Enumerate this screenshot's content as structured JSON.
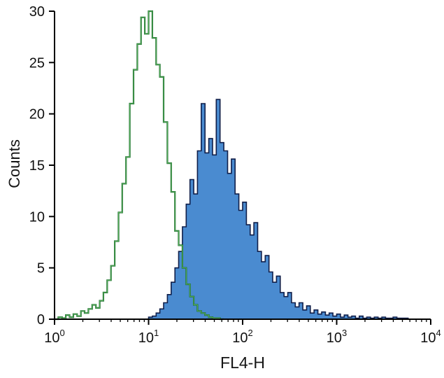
{
  "chart_data": {
    "type": "area",
    "subtype": "flow-cytometry-histogram-overlay",
    "title": "",
    "xlabel": "FL4-H",
    "ylabel": "Counts",
    "x_scale": "log10",
    "xlim_log": [
      0,
      4
    ],
    "ylim": [
      0,
      30
    ],
    "y_ticks": [
      0,
      5,
      10,
      15,
      20,
      25,
      30
    ],
    "x_tick_exponents": [
      0,
      1,
      2,
      3,
      4
    ],
    "x_tick_base": "10",
    "grid": "off",
    "legend": "none",
    "axis_color": "#000000",
    "series": [
      {
        "name": "filled-blue-histogram",
        "style": "filled",
        "color": "#101f4a",
        "fill": "#4a8bd0",
        "peak_count": 21.4,
        "peak_x": 52,
        "logx_start": 0.96,
        "logx_step": 0.04,
        "counts": [
          0,
          0.2,
          0.3,
          0.6,
          1.0,
          1.6,
          2.4,
          3.6,
          5.0,
          6.6,
          9.0,
          11.2,
          13.6,
          12.2,
          16.4,
          21.0,
          16.2,
          17.6,
          16.0,
          21.4,
          17.2,
          16.4,
          14.2,
          15.6,
          12.2,
          10.6,
          11.4,
          9.2,
          8.2,
          9.4,
          6.6,
          5.6,
          6.2,
          4.6,
          3.6,
          4.2,
          2.6,
          2.2,
          2.6,
          1.6,
          1.2,
          1.6,
          0.9,
          1.3,
          0.6,
          0.9,
          0.5,
          0.7,
          0.4,
          0.6,
          0.3,
          0.5,
          0.2,
          0.4,
          0.2,
          0.3,
          0.1,
          0.3,
          0.1,
          0.2,
          0.1,
          0.2,
          0.1,
          0.2,
          0.1,
          0.1,
          0.2,
          0.1,
          0.1,
          0.1,
          0,
          0
        ]
      },
      {
        "name": "open-green-histogram",
        "style": "open",
        "color": "#1e6f2f",
        "color_inner": "#5ab25e",
        "fill": "none",
        "peak_count": 30,
        "peak_x": 10,
        "logx_start": 0.0,
        "logx_step": 0.04,
        "counts": [
          0,
          0.2,
          0.1,
          0.4,
          0.2,
          0.5,
          0.3,
          0.8,
          0.6,
          1.0,
          1.4,
          1.1,
          1.8,
          2.6,
          3.8,
          5.2,
          7.6,
          10.4,
          13.2,
          15.8,
          21.0,
          24.3,
          26.8,
          29.4,
          27.8,
          30.0,
          27.4,
          24.8,
          23.6,
          19.2,
          15.2,
          12.4,
          8.6,
          7.2,
          5.0,
          3.4,
          2.2,
          1.4,
          0.8,
          0.6,
          0.4,
          0.2,
          0.1,
          0.1,
          0,
          0
        ]
      }
    ]
  }
}
